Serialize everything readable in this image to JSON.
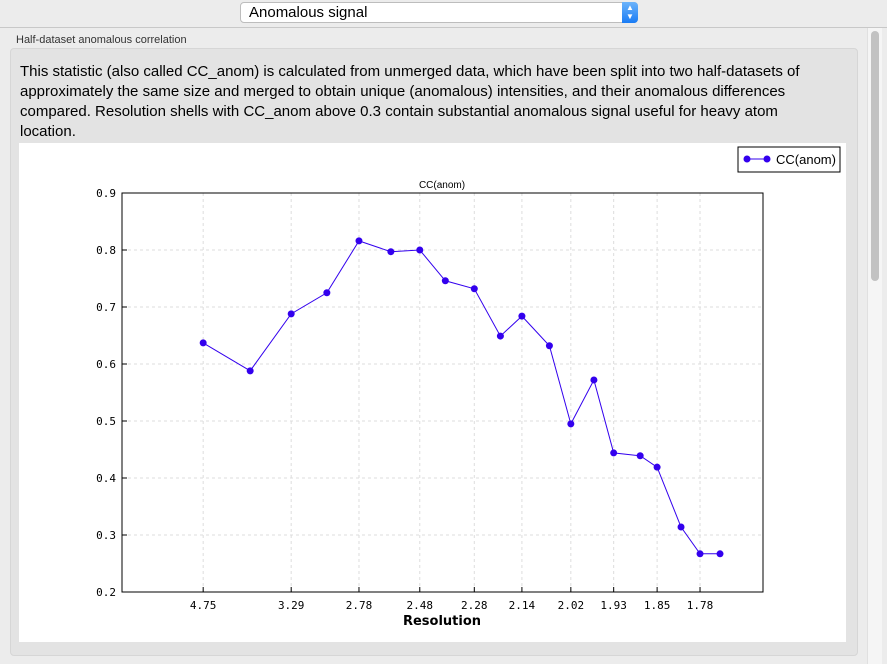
{
  "header": {
    "select_value": "Anomalous signal"
  },
  "group": {
    "title": "Half-dataset anomalous correlation",
    "description": "This statistic (also called CC_anom) is calculated from unmerged data, which have been split into two half-datasets of approximately the same size and merged to obtain unique (anomalous) intensities, and their anomalous differences compared.  Resolution shells with CC_anom above 0.3 contain substantial anomalous signal useful for heavy atom location."
  },
  "chart_data": {
    "type": "line",
    "title": "CC(anom)",
    "xlabel": "Resolution",
    "ylabel": "",
    "x_scale": "1/d^2",
    "xlim_inverse_d2": [
      0,
      0.35
    ],
    "ylim": [
      0.2,
      0.9
    ],
    "yticks": [
      "0.2",
      "0.3",
      "0.4",
      "0.5",
      "0.6",
      "0.7",
      "0.8",
      "0.9"
    ],
    "xticks": [
      "4.75",
      "3.29",
      "2.78",
      "2.48",
      "2.28",
      "2.14",
      "2.02",
      "1.93",
      "1.85",
      "1.78"
    ],
    "grid": true,
    "legend_position": "top-right",
    "series": [
      {
        "name": "CC(anom)",
        "color": "#3300ee",
        "x": [
          4.75,
          3.78,
          3.29,
          2.99,
          2.78,
          2.61,
          2.48,
          2.38,
          2.28,
          2.2,
          2.14,
          2.07,
          2.02,
          1.97,
          1.93,
          1.88,
          1.85,
          1.81,
          1.78,
          1.75
        ],
        "values": [
          0.637,
          0.588,
          0.688,
          0.725,
          0.816,
          0.797,
          0.8,
          0.746,
          0.732,
          0.649,
          0.684,
          0.632,
          0.495,
          0.572,
          0.444,
          0.439,
          0.419,
          0.314,
          0.267,
          0.267
        ]
      }
    ]
  }
}
